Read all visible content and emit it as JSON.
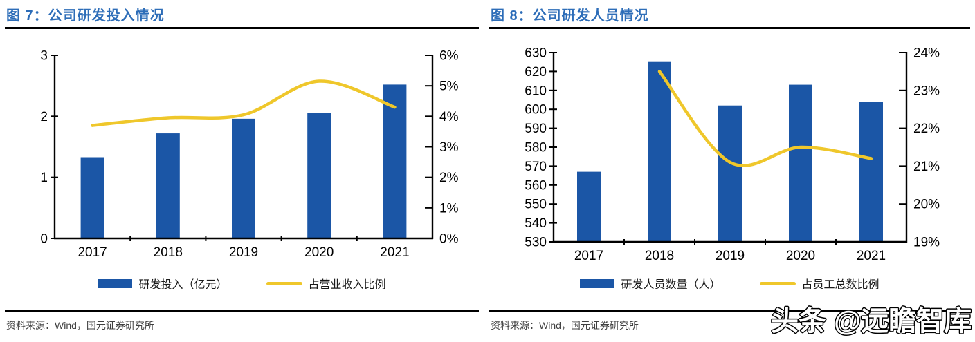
{
  "colors": {
    "bar_blue": "#1B56A6",
    "line_yellow": "#EFC72B",
    "title_blue": "#2D6DB8",
    "axis_black": "#000000",
    "source_gray": "#404040"
  },
  "watermark": {
    "text": "头条 @远瞻智库"
  },
  "panels": [
    {
      "source": "资料来源：Wind，国元证券研究所"
    },
    {
      "source": "资料来源：Wind，国元证券研究所"
    }
  ],
  "chart_data": [
    {
      "type": "bar",
      "subtype": "bar+line combo, dual y-axes",
      "title": "图 7：公司研发投入情况",
      "categories": [
        "2017",
        "2018",
        "2019",
        "2020",
        "2021"
      ],
      "series": [
        {
          "name": "研发投入（亿元）",
          "type": "bar",
          "axis": "left",
          "values": [
            1.33,
            1.72,
            1.96,
            2.05,
            2.52
          ]
        },
        {
          "name": "占营业收入比例",
          "type": "line",
          "axis": "right",
          "unit": "%",
          "values": [
            3.7,
            3.95,
            4.05,
            5.15,
            4.3
          ]
        }
      ],
      "left_axis": {
        "min": 0,
        "max": 3,
        "step": 1,
        "ticks": [
          "0",
          "1",
          "2",
          "3"
        ]
      },
      "right_axis": {
        "min": 0,
        "max": 6,
        "step": 1,
        "format": "percent",
        "ticks": [
          "0%",
          "1%",
          "2%",
          "3%",
          "4%",
          "5%",
          "6%"
        ]
      },
      "grid": false,
      "legend_position": "bottom"
    },
    {
      "type": "bar",
      "subtype": "bar+line combo, dual y-axes, line starts at 2018",
      "title": "图 8：公司研发人员情况",
      "categories": [
        "2017",
        "2018",
        "2019",
        "2020",
        "2021"
      ],
      "series": [
        {
          "name": "研发人员数量（人）",
          "type": "bar",
          "axis": "left",
          "values": [
            567,
            625,
            602,
            613,
            604
          ]
        },
        {
          "name": "占员工总数比例",
          "type": "line",
          "axis": "right",
          "unit": "%",
          "values": [
            null,
            23.5,
            21.1,
            21.5,
            21.2
          ]
        }
      ],
      "left_axis": {
        "min": 530,
        "max": 630,
        "step": 10,
        "ticks": [
          "530",
          "540",
          "550",
          "560",
          "570",
          "580",
          "590",
          "600",
          "610",
          "620",
          "630"
        ]
      },
      "right_axis": {
        "min": 19,
        "max": 24,
        "step": 1,
        "format": "percent",
        "ticks": [
          "19%",
          "20%",
          "21%",
          "22%",
          "23%",
          "24%"
        ]
      },
      "grid": false,
      "legend_position": "bottom"
    }
  ]
}
